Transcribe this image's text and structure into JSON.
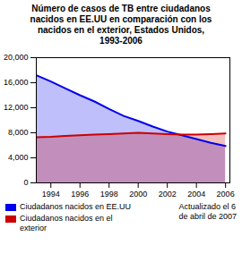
{
  "chart_data": {
    "type": "area",
    "title": "Número de casos de TB entre ciudadanos\nnacidos en EE.UU en comparación con los\nnacidos en el exterior, Estados Unidos,\n1993-2006",
    "x": [
      1993,
      1994,
      1995,
      1996,
      1997,
      1998,
      1999,
      2000,
      2001,
      2002,
      2003,
      2004,
      2005,
      2006
    ],
    "series": [
      {
        "name": "Ciudadanos nacidos en EE.UU",
        "color": "#0000EE",
        "values": [
          17200,
          16200,
          15100,
          14000,
          13000,
          11800,
          10700,
          9900,
          9000,
          8200,
          7600,
          7000,
          6400,
          5900
        ]
      },
      {
        "name": "Ciudadanos nacidos en el\nexterior",
        "color": "#CC0000",
        "values": [
          7300,
          7350,
          7500,
          7600,
          7700,
          7800,
          7900,
          8000,
          7900,
          7800,
          7700,
          7700,
          7800,
          7900
        ]
      }
    ],
    "xlim": [
      1993,
      2006.3
    ],
    "xticks": [
      1994,
      1996,
      1998,
      2000,
      2002,
      2004,
      2006
    ],
    "ylim": [
      0,
      20000
    ],
    "yticks": [
      0,
      {
        "value": 4000,
        "label": "4,000"
      },
      {
        "value": 8000,
        "label": "8,000"
      },
      {
        "value": 12000,
        "label": "12,000"
      },
      {
        "value": 16000,
        "label": "16,000"
      },
      {
        "value": 20000,
        "label": "20,000"
      }
    ],
    "grid": false,
    "legend": "lower left",
    "annotations": [
      "Actualizado el 6\nde abril de 2007"
    ]
  }
}
